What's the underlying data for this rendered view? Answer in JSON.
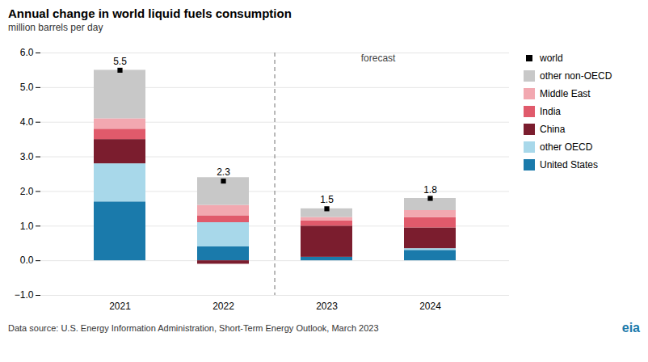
{
  "chart_data": {
    "type": "bar",
    "stacked": true,
    "title": "Annual change in world liquid fuels consumption",
    "subtitle": "million barrels per day",
    "caption": "Data source: U.S. Energy Information Administration, Short-Term Energy Outlook, March 2023",
    "categories": [
      "2021",
      "2022",
      "2023",
      "2024"
    ],
    "series": [
      {
        "name": "United States",
        "color": "#1a7aab",
        "values": [
          1.7,
          0.4,
          0.1,
          0.3
        ]
      },
      {
        "name": "other OECD",
        "color": "#a8d8ea",
        "values": [
          1.1,
          0.7,
          0.0,
          0.05
        ]
      },
      {
        "name": "China",
        "color": "#7b1d2e",
        "values": [
          0.7,
          -0.1,
          0.9,
          0.6
        ]
      },
      {
        "name": "India",
        "color": "#e05a6b",
        "values": [
          0.3,
          0.2,
          0.15,
          0.3
        ]
      },
      {
        "name": "Middle East",
        "color": "#f2a8b0",
        "values": [
          0.3,
          0.3,
          0.1,
          0.2
        ]
      },
      {
        "name": "other non-OECD",
        "color": "#c8c8c8",
        "values": [
          1.4,
          0.8,
          0.25,
          0.35
        ]
      },
      {
        "name": "world",
        "type": "scatter",
        "marker": "square",
        "color": "#000000",
        "data_labels": true,
        "values": [
          5.5,
          2.3,
          1.5,
          1.8
        ]
      }
    ],
    "annotations": [
      {
        "text": "forecast",
        "from": "2023"
      },
      {
        "text": "eia",
        "color": "#1a7aab"
      }
    ],
    "ylim": [
      -1,
      6
    ],
    "yticks": [
      -1,
      0,
      1,
      2,
      3,
      4,
      5,
      6
    ],
    "grid": true,
    "legend": "upper right"
  }
}
